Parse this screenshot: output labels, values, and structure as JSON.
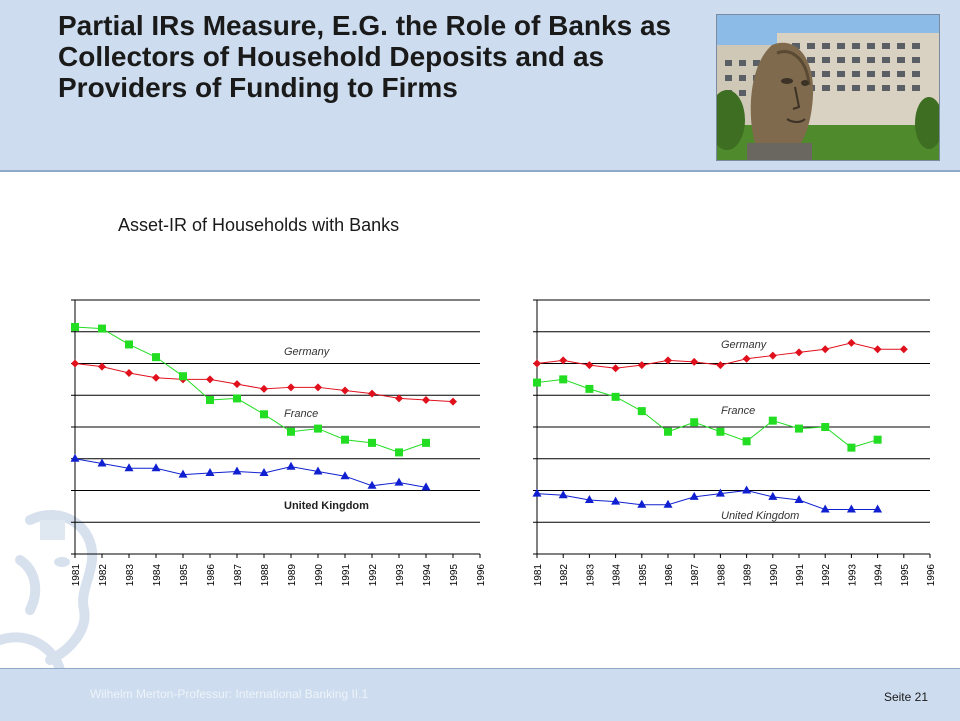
{
  "slide": {
    "title": "Partial IRs Measure, E.G. the Role of Banks as Collectors of Household Deposits and as Providers of Funding to Firms",
    "subtitle": "Asset-IR of Households with Banks",
    "footer_left": "Wilhelm Merton-Professur: International Banking II.1",
    "footer_right": "Seite 21",
    "photo_icon": "campus-building-with-head-sculpture-icon",
    "watermark_icon": "faded-profile-portrait-icon"
  },
  "chart_data": [
    {
      "type": "line",
      "x": [
        "1981",
        "1982",
        "1983",
        "1984",
        "1985",
        "1986",
        "1987",
        "1988",
        "1989",
        "1990",
        "1991",
        "1992",
        "1993",
        "1994",
        "1995",
        "1996"
      ],
      "ylim": [
        0,
        8
      ],
      "grid": true,
      "series": [
        {
          "name": "Germany",
          "color": "#e0101c",
          "marker": "diamond",
          "values": [
            6.0,
            5.9,
            5.7,
            5.55,
            5.5,
            5.5,
            5.35,
            5.2,
            5.25,
            5.25,
            5.15,
            5.05,
            4.9,
            4.85,
            4.8,
            null
          ]
        },
        {
          "name": "France",
          "color": "#22dd22",
          "marker": "square",
          "values": [
            7.15,
            7.1,
            6.6,
            6.2,
            5.6,
            4.85,
            4.9,
            4.4,
            3.85,
            3.95,
            3.6,
            3.5,
            3.2,
            3.5,
            null,
            null
          ]
        },
        {
          "name": "United Kingdom",
          "color": "#1020d0",
          "marker": "triangle",
          "values": [
            3.0,
            2.85,
            2.7,
            2.7,
            2.5,
            2.55,
            2.6,
            2.55,
            2.75,
            2.6,
            2.45,
            2.15,
            2.25,
            2.1,
            null,
            null
          ]
        }
      ],
      "annotations": [
        "Germany",
        "France",
        "United Kingdom"
      ]
    },
    {
      "type": "line",
      "x": [
        "1981",
        "1982",
        "1983",
        "1984",
        "1985",
        "1986",
        "1987",
        "1988",
        "1989",
        "1990",
        "1991",
        "1992",
        "1993",
        "1994",
        "1995",
        "1996"
      ],
      "ylim": [
        0,
        8
      ],
      "grid": true,
      "series": [
        {
          "name": "Germany",
          "color": "#e0101c",
          "marker": "diamond",
          "values": [
            6.0,
            6.1,
            5.95,
            5.85,
            5.95,
            6.1,
            6.05,
            5.95,
            6.15,
            6.25,
            6.35,
            6.45,
            6.65,
            6.45,
            6.45,
            null
          ]
        },
        {
          "name": "France",
          "color": "#22dd22",
          "marker": "square",
          "values": [
            5.4,
            5.5,
            5.2,
            4.95,
            4.5,
            3.85,
            4.15,
            3.85,
            3.55,
            4.2,
            3.95,
            4.0,
            3.35,
            3.6,
            null,
            null
          ]
        },
        {
          "name": "United Kingdom",
          "color": "#1020d0",
          "marker": "triangle",
          "values": [
            1.9,
            1.85,
            1.7,
            1.65,
            1.55,
            1.55,
            1.8,
            1.9,
            2.0,
            1.8,
            1.7,
            1.4,
            1.4,
            1.4,
            null,
            null
          ]
        }
      ],
      "annotations": [
        "Germany",
        "France",
        "United Kingdom"
      ]
    }
  ],
  "chart_labels": [
    {
      "germany": "Germany",
      "france": "France",
      "uk": "United Kingdom"
    },
    {
      "germany": "Germany",
      "france": "France",
      "uk": "United Kingdom"
    }
  ]
}
